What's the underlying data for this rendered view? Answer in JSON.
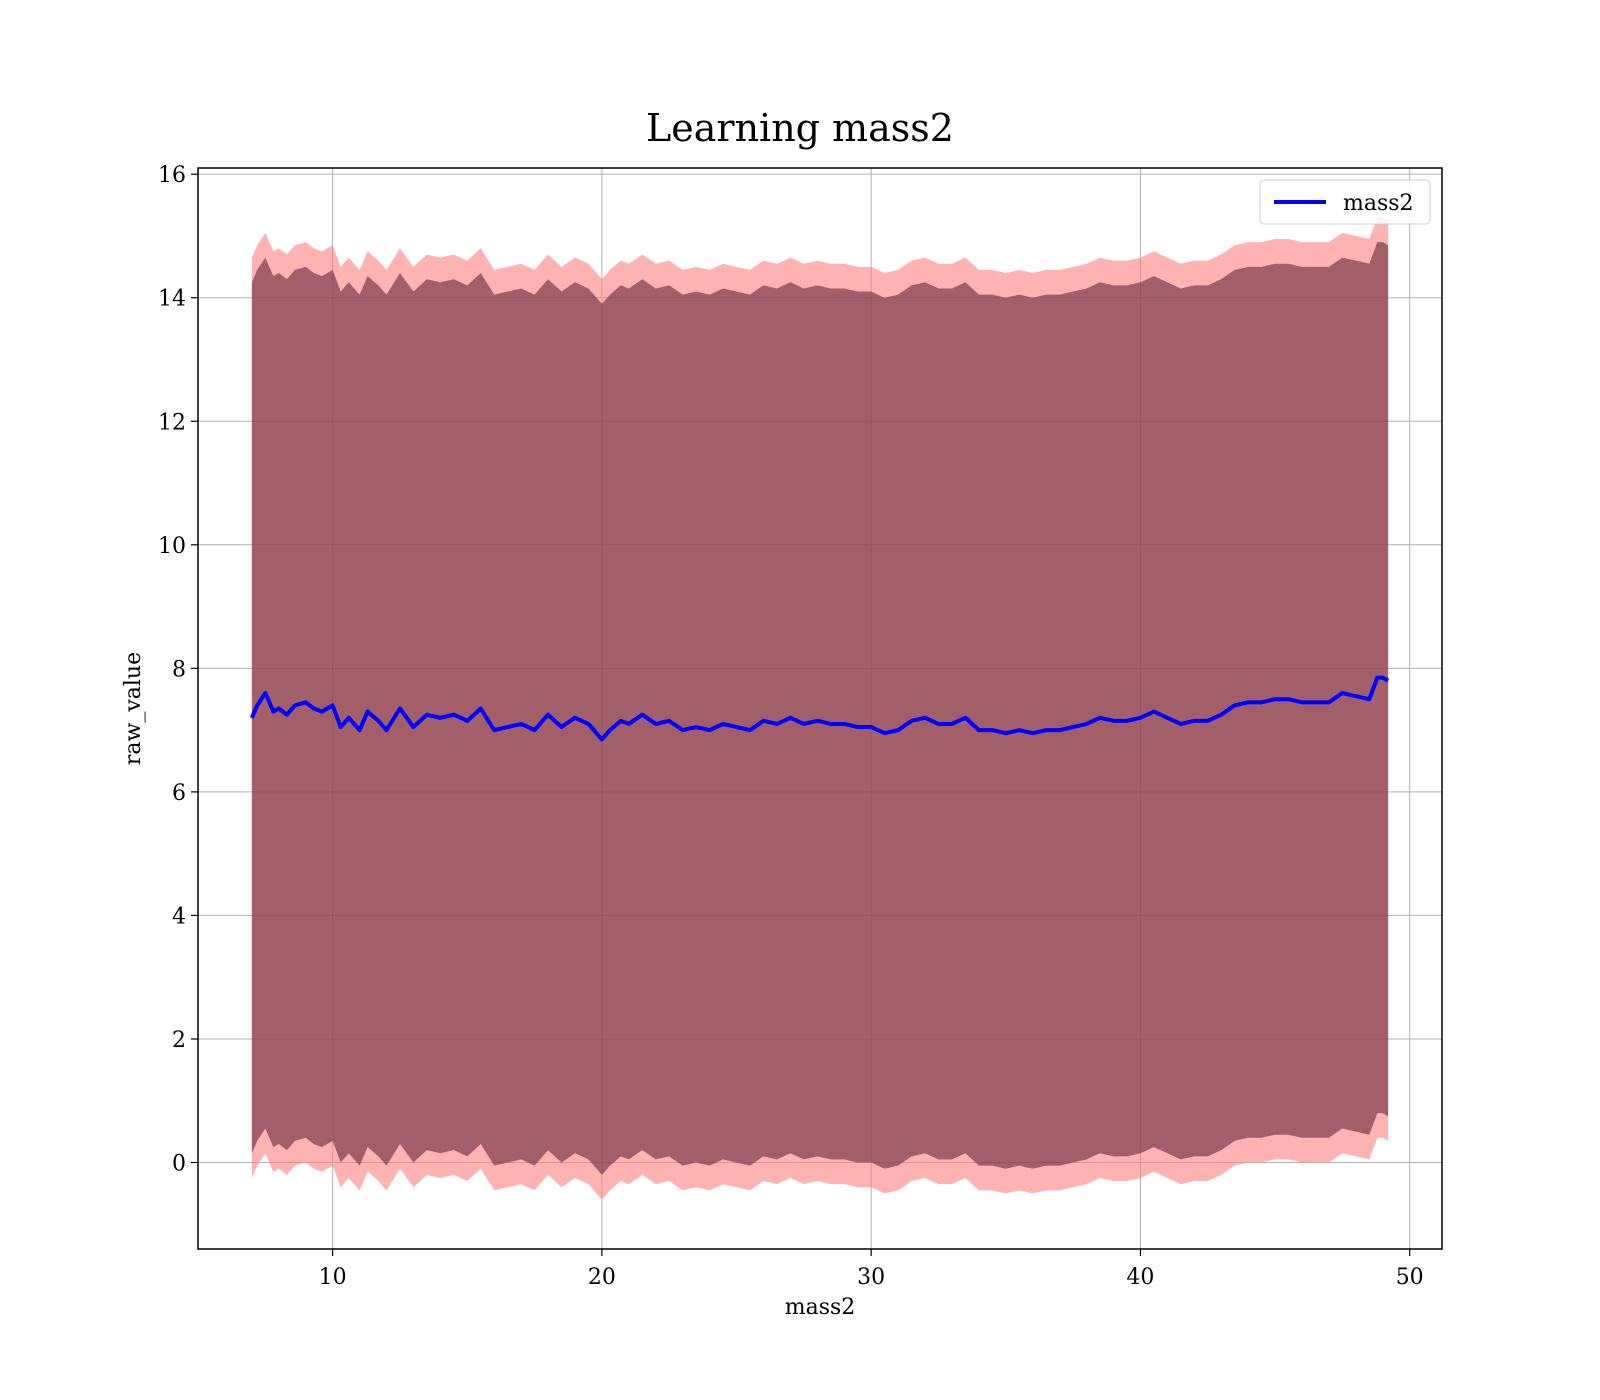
{
  "chart_data": {
    "type": "line",
    "title": "Learning mass2",
    "xlabel": "mass2",
    "ylabel": "raw_value",
    "xlim": [
      5.0,
      51.2
    ],
    "ylim": [
      -1.4,
      16.1
    ],
    "x_ticks": [
      10,
      20,
      30,
      40,
      50
    ],
    "y_ticks": [
      0,
      2,
      4,
      6,
      8,
      10,
      12,
      14,
      16
    ],
    "grid": true,
    "legend_position": "top-right",
    "series": [
      {
        "name": "mass2",
        "color": "#0000ff",
        "x": [
          7.0,
          7.2,
          7.5,
          7.8,
          8.0,
          8.3,
          8.6,
          9.0,
          9.3,
          9.6,
          10.0,
          10.3,
          10.6,
          11.0,
          11.3,
          11.7,
          12.0,
          12.5,
          13.0,
          13.5,
          14.0,
          14.5,
          15.0,
          15.5,
          16.0,
          16.5,
          17.0,
          17.5,
          18.0,
          18.5,
          19.0,
          19.5,
          20.0,
          20.3,
          20.7,
          21.0,
          21.5,
          22.0,
          22.5,
          23.0,
          23.5,
          24.0,
          24.5,
          25.0,
          25.5,
          26.0,
          26.5,
          27.0,
          27.5,
          28.0,
          28.5,
          29.0,
          29.5,
          30.0,
          30.5,
          31.0,
          31.5,
          32.0,
          32.5,
          33.0,
          33.5,
          34.0,
          34.5,
          35.0,
          35.5,
          36.0,
          36.5,
          37.0,
          37.5,
          38.0,
          38.5,
          39.0,
          39.5,
          40.0,
          40.5,
          41.0,
          41.5,
          42.0,
          42.5,
          43.0,
          43.5,
          44.0,
          44.5,
          45.0,
          45.5,
          46.0,
          46.5,
          47.0,
          47.5,
          48.0,
          48.5,
          48.8,
          49.0,
          49.2
        ],
        "y": [
          7.2,
          7.4,
          7.6,
          7.3,
          7.35,
          7.25,
          7.4,
          7.45,
          7.35,
          7.3,
          7.4,
          7.05,
          7.2,
          7.0,
          7.3,
          7.15,
          7.0,
          7.35,
          7.05,
          7.25,
          7.2,
          7.25,
          7.15,
          7.35,
          7.0,
          7.05,
          7.1,
          7.0,
          7.25,
          7.05,
          7.2,
          7.1,
          6.85,
          7.0,
          7.15,
          7.1,
          7.25,
          7.1,
          7.15,
          7.0,
          7.05,
          7.0,
          7.1,
          7.05,
          7.0,
          7.15,
          7.1,
          7.2,
          7.1,
          7.15,
          7.1,
          7.1,
          7.05,
          7.05,
          6.95,
          7.0,
          7.15,
          7.2,
          7.1,
          7.1,
          7.2,
          7.0,
          7.0,
          6.95,
          7.0,
          6.95,
          7.0,
          7.0,
          7.05,
          7.1,
          7.2,
          7.15,
          7.15,
          7.2,
          7.3,
          7.2,
          7.1,
          7.15,
          7.15,
          7.25,
          7.4,
          7.45,
          7.45,
          7.5,
          7.5,
          7.45,
          7.45,
          7.45,
          7.6,
          7.55,
          7.5,
          7.85,
          7.85,
          7.8
        ],
        "outer_band_offset": 7.45,
        "inner_band_offset": 7.05
      }
    ]
  }
}
